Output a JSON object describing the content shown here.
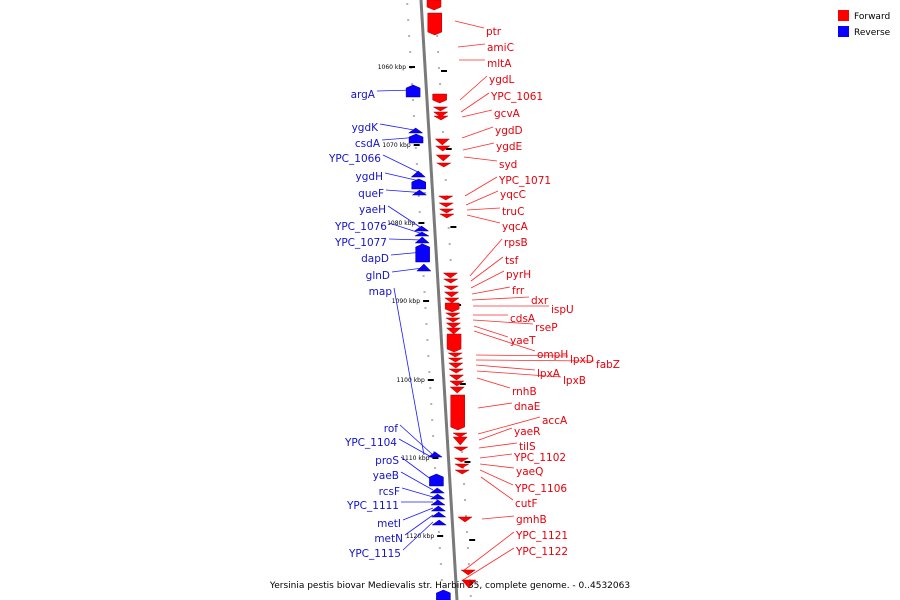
{
  "legend": {
    "forward": {
      "label": "Forward",
      "color": "#ff0000"
    },
    "reverse": {
      "label": "Reverse",
      "color": "#0a00ff"
    }
  },
  "caption": "Yersinia pestis biovar Medievalis str. Harbin 35, complete genome. - 0..4532063",
  "scale_labels": [
    "1060 kbp",
    "1070 kbp",
    "1080 kbp",
    "1090 kbp",
    "1100 kbp",
    "1110 kbp",
    "1120 kbp"
  ],
  "forward_genes": [
    "ptr",
    "amiC",
    "mltA",
    "ygdL",
    "YPC_1061",
    "gcvA",
    "ygdD",
    "ygdE",
    "syd",
    "YPC_1071",
    "yqcC",
    "truC",
    "yqcA",
    "rpsB",
    "tsf",
    "pyrH",
    "frr",
    "dxr",
    "ispU",
    "cdsA",
    "rseP",
    "yaeT",
    "ompH",
    "lpxD",
    "fabZ",
    "lpxA",
    "lpxB",
    "rnhB",
    "dnaE",
    "accA",
    "yaeR",
    "tilS",
    "YPC_1102",
    "yaeQ",
    "YPC_1106",
    "cutF",
    "gmhB",
    "YPC_1121",
    "YPC_1122"
  ],
  "reverse_genes": [
    "argA",
    "ygdK",
    "csdA",
    "YPC_1066",
    "ygdH",
    "queF",
    "yaeH",
    "YPC_1076",
    "YPC_1077",
    "dapD",
    "glnD",
    "map",
    "rof",
    "YPC_1104",
    "proS",
    "yaeB",
    "rcsF",
    "YPC_1111",
    "metI",
    "metN",
    "YPC_1115"
  ]
}
